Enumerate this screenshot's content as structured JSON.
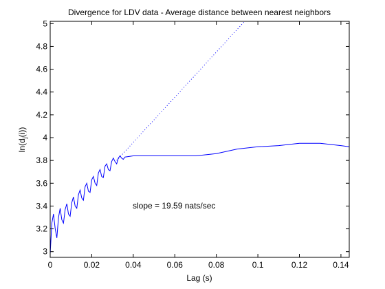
{
  "chart_data": {
    "type": "line",
    "title": "Divergence for LDV data - Average distance between nearest neighbors",
    "xlabel": "Lag (s)",
    "ylabel_main": "ln(d",
    "ylabel_sub": "j",
    "ylabel_end": "(i))",
    "xlim": [
      0,
      0.144
    ],
    "ylim": [
      2.95,
      5.02
    ],
    "x_ticks": [
      0,
      0.02,
      0.04,
      0.06,
      0.08,
      0.1,
      0.12,
      0.14
    ],
    "x_tick_labels": [
      "0",
      "0.02",
      "0.04",
      "0.06",
      "0.08",
      "0.1",
      "0.12",
      "0.14"
    ],
    "y_ticks": [
      3,
      3.2,
      3.4,
      3.6,
      3.8,
      4,
      4.2,
      4.4,
      4.6,
      4.8,
      5
    ],
    "y_tick_labels": [
      "3",
      "3.2",
      "3.4",
      "3.6",
      "3.8",
      "4",
      "4.2",
      "4.4",
      "4.6",
      "4.8",
      "5"
    ],
    "grid": false,
    "annotation": "slope = 19.59 nats/sec",
    "series": [
      {
        "style": "solid",
        "color": "#0000ff",
        "x": [
          0,
          0.0008,
          0.0016,
          0.0024,
          0.0032,
          0.004,
          0.0048,
          0.0056,
          0.0064,
          0.0072,
          0.008,
          0.0088,
          0.0096,
          0.0104,
          0.0112,
          0.012,
          0.0128,
          0.0136,
          0.0144,
          0.0152,
          0.016,
          0.0168,
          0.0176,
          0.0184,
          0.0192,
          0.02,
          0.0208,
          0.0216,
          0.0224,
          0.0232,
          0.024,
          0.0248,
          0.0256,
          0.0264,
          0.0272,
          0.028,
          0.0288,
          0.0296,
          0.0304,
          0.0312,
          0.032,
          0.0328,
          0.0336,
          0.0344,
          0.0352,
          0.036,
          0.04,
          0.05,
          0.06,
          0.07,
          0.08,
          0.09,
          0.1,
          0.11,
          0.12,
          0.13,
          0.14,
          0.144
        ],
        "y": [
          2.98,
          3.25,
          3.33,
          3.2,
          3.12,
          3.3,
          3.38,
          3.28,
          3.25,
          3.37,
          3.42,
          3.33,
          3.31,
          3.43,
          3.48,
          3.4,
          3.38,
          3.5,
          3.54,
          3.47,
          3.45,
          3.57,
          3.6,
          3.53,
          3.52,
          3.63,
          3.66,
          3.6,
          3.58,
          3.69,
          3.72,
          3.66,
          3.65,
          3.75,
          3.77,
          3.72,
          3.71,
          3.79,
          3.82,
          3.79,
          3.77,
          3.82,
          3.84,
          3.82,
          3.81,
          3.83,
          3.84,
          3.84,
          3.84,
          3.84,
          3.86,
          3.9,
          3.92,
          3.93,
          3.95,
          3.95,
          3.93,
          3.92
        ]
      },
      {
        "style": "dotted",
        "color": "#0000ff",
        "x": [
          0.032,
          0.0936
        ],
        "y": [
          3.8,
          5.02
        ]
      }
    ]
  }
}
